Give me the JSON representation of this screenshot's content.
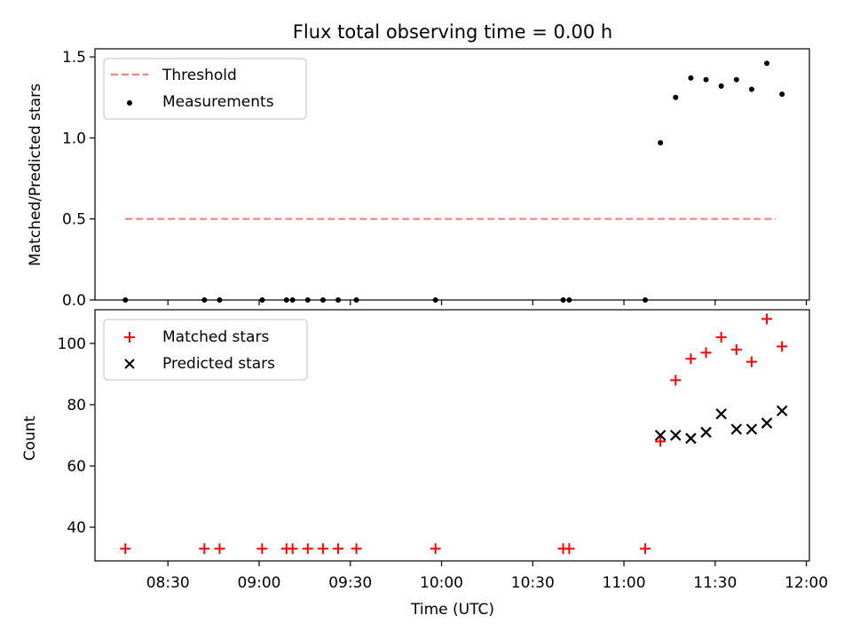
{
  "chart_data": [
    {
      "type": "scatter",
      "title": "Flux total observing time = 0.00 h",
      "xlabel": "",
      "ylabel": "Matched/Predicted stars",
      "ylim": [
        0,
        1.55
      ],
      "yticks": [
        "0.0",
        "0.5",
        "1.0",
        "1.5"
      ],
      "legend": {
        "placement": "top-left",
        "entries": [
          "Threshold",
          "Measurements"
        ]
      },
      "threshold": {
        "name": "Threshold",
        "value": 0.5,
        "x": [
          "08:16",
          "11:50"
        ],
        "color": "#ff7f7f"
      },
      "series": [
        {
          "name": "Measurements",
          "x": [
            "08:16",
            "08:42",
            "08:47",
            "09:01",
            "09:09",
            "09:11",
            "09:16",
            "09:21",
            "09:26",
            "09:32",
            "09:58",
            "10:40",
            "10:42",
            "11:07",
            "11:12",
            "11:17",
            "11:22",
            "11:27",
            "11:32",
            "11:37",
            "11:42",
            "11:47",
            "11:52"
          ],
          "y": [
            0,
            0,
            0,
            0,
            0,
            0,
            0,
            0,
            0,
            0,
            0,
            0,
            0,
            0,
            0.97,
            1.25,
            1.37,
            1.36,
            1.32,
            1.36,
            1.3,
            1.46,
            1.27
          ],
          "color": "#000000"
        }
      ]
    },
    {
      "type": "scatter",
      "xlabel": "Time (UTC)",
      "ylabel": "Count",
      "ylim": [
        29,
        111
      ],
      "yticks": [
        "40",
        "60",
        "80",
        "100"
      ],
      "xticks": [
        "08:30",
        "09:00",
        "09:30",
        "10:00",
        "10:30",
        "11:00",
        "11:30",
        "12:00"
      ],
      "xlim": [
        "08:06",
        "12:01"
      ],
      "legend": {
        "placement": "top-left",
        "entries": [
          "Matched stars",
          "Predicted stars"
        ]
      },
      "series": [
        {
          "name": "Matched stars",
          "x": [
            "08:16",
            "08:42",
            "08:47",
            "09:01",
            "09:09",
            "09:11",
            "09:16",
            "09:21",
            "09:26",
            "09:32",
            "09:58",
            "10:40",
            "10:42",
            "11:07",
            "11:12",
            "11:17",
            "11:22",
            "11:27",
            "11:32",
            "11:37",
            "11:42",
            "11:47",
            "11:52"
          ],
          "y": [
            33,
            33,
            33,
            33,
            33,
            33,
            33,
            33,
            33,
            33,
            33,
            33,
            33,
            33,
            68,
            88,
            95,
            97,
            102,
            98,
            94,
            108,
            99
          ],
          "color": "#ff0000"
        },
        {
          "name": "Predicted stars",
          "x": [
            "11:12",
            "11:17",
            "11:22",
            "11:27",
            "11:32",
            "11:37",
            "11:42",
            "11:47",
            "11:52"
          ],
          "y": [
            70,
            70,
            69,
            71,
            77,
            72,
            72,
            74,
            78
          ],
          "color": "#000000"
        }
      ]
    }
  ]
}
